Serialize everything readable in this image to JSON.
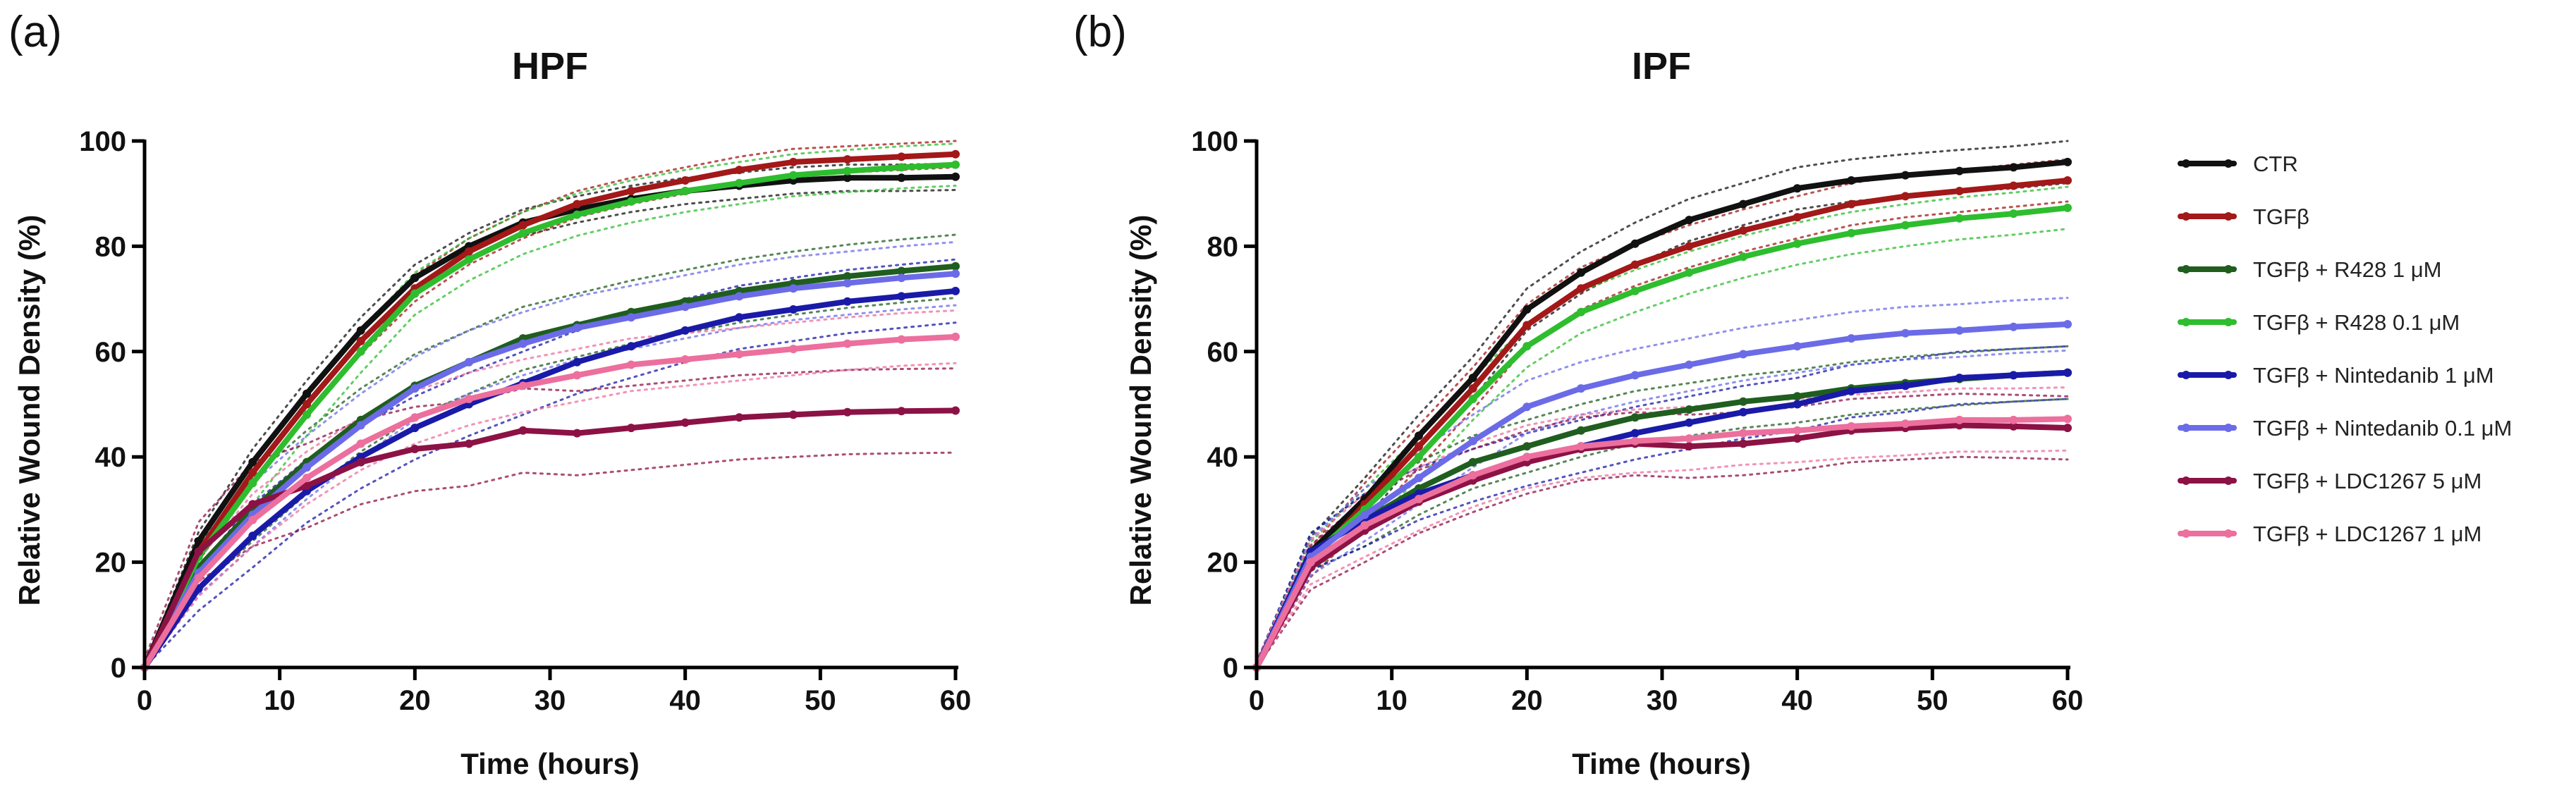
{
  "figure": {
    "panels": [
      "(a)",
      "(b)"
    ]
  },
  "legend": [
    {
      "label": "CTR",
      "color": "#111111"
    },
    {
      "label": "TGFβ",
      "color": "#a31818"
    },
    {
      "label": "TGFβ + R428 1 μM",
      "color": "#1f5e1f"
    },
    {
      "label": "TGFβ + R428 0.1 μM",
      "color": "#2ebd2e"
    },
    {
      "label": "TGFβ + Nintedanib 1 μM",
      "color": "#1a1aa8"
    },
    {
      "label": "TGFβ + Nintedanib 0.1 μM",
      "color": "#6b6be8"
    },
    {
      "label": "TGFβ + LDC1267 5 μM",
      "color": "#8c1245"
    },
    {
      "label": "TGFβ + LDC1267 1 μM",
      "color": "#ec6f9d"
    }
  ],
  "chart_data": [
    {
      "type": "line",
      "panel": "(a)",
      "title": "HPF",
      "xlabel": "Time (hours)",
      "ylabel": "Relative Wound Density (%)",
      "xlim": [
        0,
        60
      ],
      "ylim": [
        0,
        100
      ],
      "xticks": [
        0,
        10,
        20,
        30,
        40,
        50,
        60
      ],
      "yticks": [
        0,
        20,
        40,
        60,
        80,
        100
      ],
      "x": [
        0,
        4,
        8,
        12,
        16,
        20,
        24,
        28,
        32,
        36,
        40,
        44,
        48,
        52,
        56,
        60
      ],
      "series": [
        {
          "name": "CTR",
          "values": [
            0,
            24,
            39,
            52,
            64,
            74,
            80,
            84.5,
            87,
            89,
            90.5,
            91.5,
            92.5,
            93,
            93,
            93.2
          ],
          "band": 2.5
        },
        {
          "name": "TGFβ",
          "values": [
            0,
            22,
            37,
            50,
            62,
            72,
            79,
            84,
            88,
            90.5,
            92.5,
            94.5,
            96,
            96.5,
            97,
            97.5
          ],
          "band": 2.5
        },
        {
          "name": "TGFβ + R428 1 μM",
          "values": [
            0,
            19,
            30,
            39,
            47,
            53.5,
            58,
            62.5,
            65,
            67.5,
            69.5,
            71.5,
            73,
            74.3,
            75.3,
            76.2
          ],
          "band": 6
        },
        {
          "name": "TGFβ + R428 0.1 μM",
          "values": [
            0,
            21,
            35,
            48,
            60,
            71,
            77.5,
            82.5,
            86,
            88.5,
            90.5,
            92,
            93.5,
            94.3,
            95,
            95.5
          ],
          "band": 4
        },
        {
          "name": "TGFβ + Nintedanib 1 μM",
          "values": [
            0,
            15,
            25,
            33.5,
            40,
            45.5,
            50,
            54,
            58,
            61,
            64,
            66.5,
            68,
            69.5,
            70.5,
            71.5
          ],
          "band": 6
        },
        {
          "name": "TGFβ + Nintedanib 0.1 μM",
          "values": [
            0,
            18,
            29,
            38,
            46,
            53,
            58,
            61.5,
            64.5,
            66.5,
            68.5,
            70.5,
            72,
            73,
            74,
            74.8
          ],
          "band": 6
        },
        {
          "name": "TGFβ + LDC1267 5 μM",
          "values": [
            0,
            22,
            31,
            34.5,
            39,
            41.5,
            42.5,
            45,
            44.5,
            45.5,
            46.5,
            47.5,
            48,
            48.5,
            48.7,
            48.8
          ],
          "band": 8
        },
        {
          "name": "TGFβ + LDC1267 1 μM",
          "values": [
            0,
            17,
            28,
            36,
            42.5,
            47.5,
            51,
            53.5,
            55.5,
            57.5,
            58.5,
            59.5,
            60.5,
            61.5,
            62.3,
            62.8
          ],
          "band": 5
        }
      ]
    },
    {
      "type": "line",
      "panel": "(b)",
      "title": "IPF",
      "xlabel": "Time (hours)",
      "ylabel": "Relative Wound Density (%)",
      "xlim": [
        0,
        60
      ],
      "ylim": [
        0,
        100
      ],
      "xticks": [
        0,
        10,
        20,
        30,
        40,
        50,
        60
      ],
      "yticks": [
        0,
        20,
        40,
        60,
        80,
        100
      ],
      "x": [
        0,
        4,
        8,
        12,
        16,
        20,
        24,
        28,
        32,
        36,
        40,
        44,
        48,
        52,
        56,
        60
      ],
      "series": [
        {
          "name": "CTR",
          "values": [
            0,
            22,
            32,
            44,
            55,
            68,
            75,
            80.5,
            85,
            88,
            91,
            92.5,
            93.5,
            94.3,
            95,
            96
          ],
          "band": 4
        },
        {
          "name": "TGFβ",
          "values": [
            0,
            20,
            31,
            42,
            53,
            65,
            72,
            76.5,
            80,
            83,
            85.5,
            88,
            89.5,
            90.5,
            91.5,
            92.5
          ],
          "band": 4
        },
        {
          "name": "TGFβ + R428 1 μM",
          "values": [
            0,
            22,
            28,
            34,
            39,
            42,
            45,
            47.5,
            49,
            50.5,
            51.5,
            53,
            54,
            54.8,
            55.5,
            56
          ],
          "band": 5
        },
        {
          "name": "TGFβ + R428 0.1 μM",
          "values": [
            0,
            21,
            30,
            40,
            51,
            61,
            67.5,
            71.5,
            75,
            78,
            80.5,
            82.5,
            84,
            85.3,
            86.2,
            87.3
          ],
          "band": 4
        },
        {
          "name": "TGFβ + Nintedanib 1 μM",
          "values": [
            0,
            22,
            28,
            33,
            36.5,
            39.5,
            42,
            44.5,
            46.5,
            48.5,
            50,
            52.5,
            53.5,
            55,
            55.5,
            56
          ],
          "band": 5
        },
        {
          "name": "TGFβ + Nintedanib 0.1 μM",
          "values": [
            0,
            21,
            29,
            36,
            43,
            49.5,
            53,
            55.5,
            57.5,
            59.5,
            61,
            62.5,
            63.5,
            64,
            64.7,
            65.2
          ],
          "band": 5
        },
        {
          "name": "TGFβ + LDC1267 5 μM",
          "values": [
            0,
            19,
            26,
            31.5,
            35.5,
            39,
            41.5,
            42.5,
            42,
            42.5,
            43.5,
            45,
            45.5,
            46,
            45.8,
            45.5
          ],
          "band": 6
        },
        {
          "name": "TGFβ + LDC1267 1 μM",
          "values": [
            0,
            20,
            27,
            32,
            36.5,
            40,
            42,
            43,
            43.5,
            44.5,
            45,
            45.8,
            46.3,
            47,
            47,
            47.2
          ],
          "band": 6
        }
      ]
    }
  ]
}
